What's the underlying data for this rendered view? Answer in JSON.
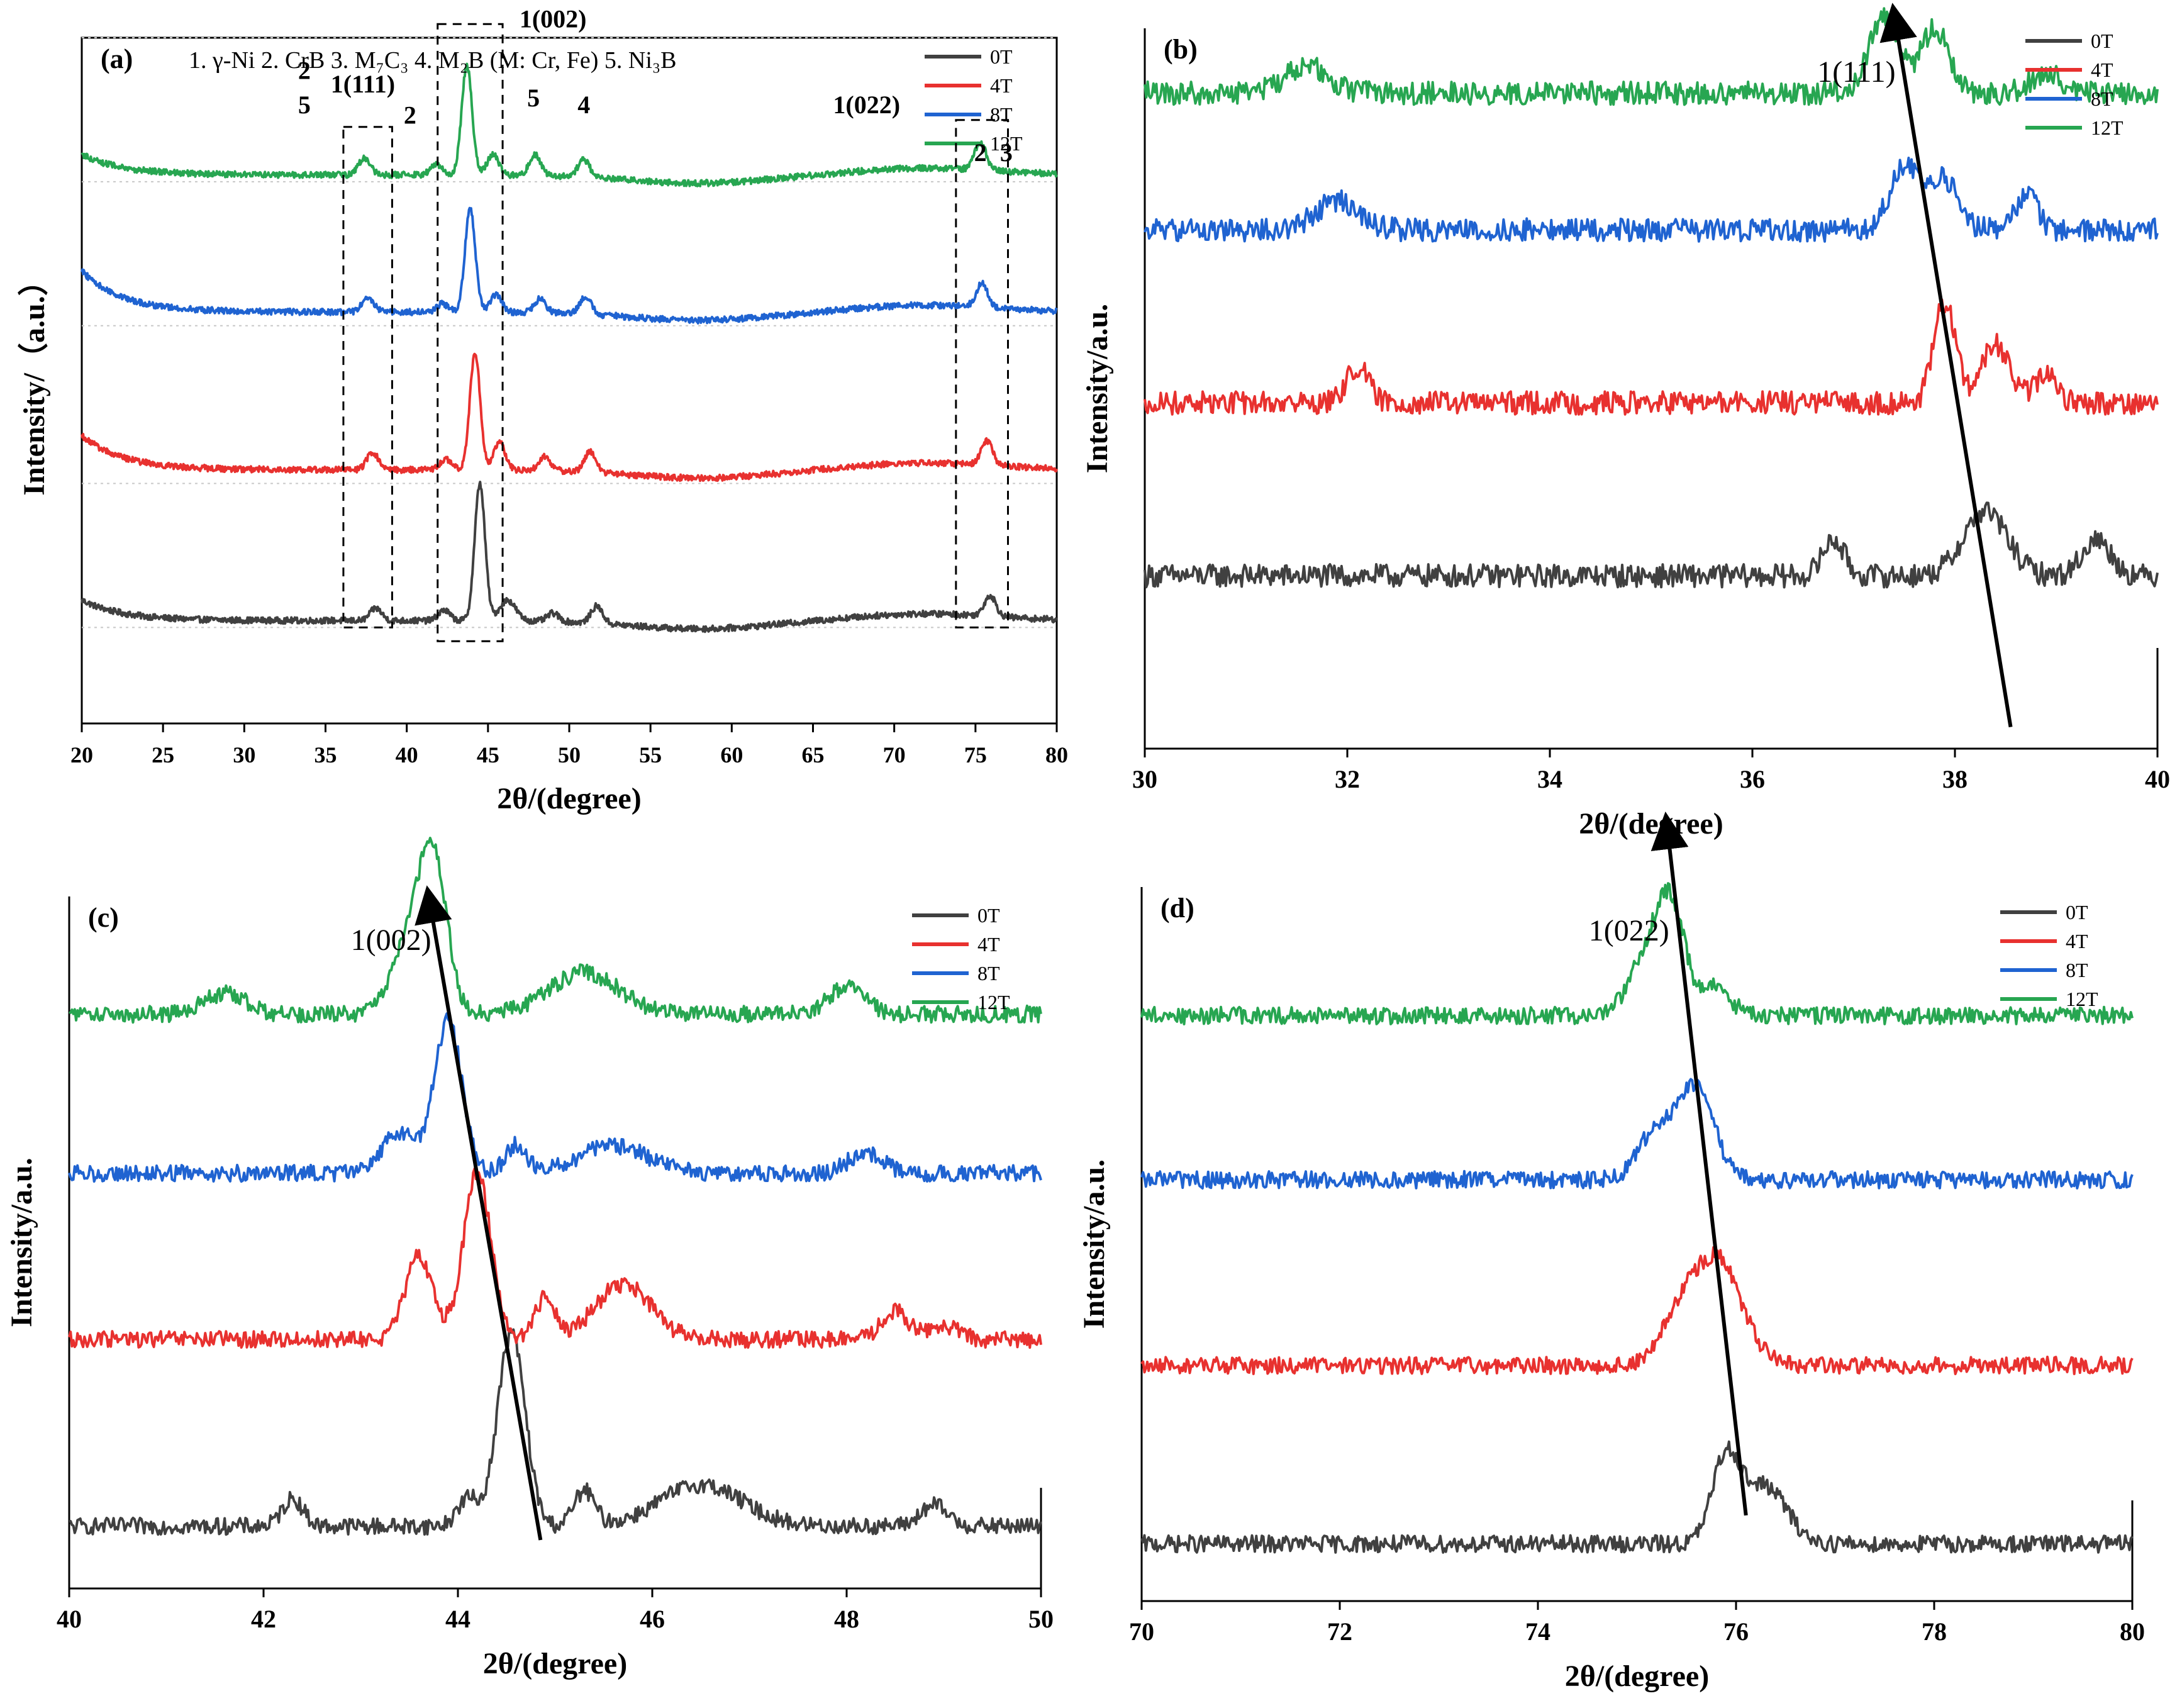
{
  "figure": {
    "colors": {
      "0T": "#404040",
      "4T": "#e8312f",
      "8T": "#1f63d1",
      "12T": "#27a651"
    },
    "legend": [
      "0T",
      "4T",
      "8T",
      "12T"
    ]
  },
  "chart_data": [
    {
      "id": "a",
      "type": "line",
      "panel_label": "(a)",
      "phase_legend": "1. γ-Ni  2. CrB  3. M₇C₃  4. M₂B (M: Cr, Fe)  5. Ni₃B",
      "xlabel": "2θ/(degree)",
      "ylabel": "Intensity/（a.u.）",
      "xlim": [
        20,
        80
      ],
      "xticks": [
        20,
        25,
        30,
        35,
        40,
        45,
        50,
        55,
        60,
        65,
        70,
        75,
        80
      ],
      "ylim": [
        0,
        100
      ],
      "series": [
        {
          "name": "0T",
          "baseline": 15,
          "start": 18,
          "peaks": [
            [
              38.1,
              1.8,
              0.5
            ],
            [
              42.3,
              1.5,
              0.5
            ],
            [
              44.5,
              20,
              0.45
            ],
            [
              46.2,
              3,
              0.7
            ],
            [
              49,
              1.2,
              0.5
            ],
            [
              51.7,
              2.5,
              0.5
            ],
            [
              75.9,
              3,
              0.5
            ]
          ]
        },
        {
          "name": "4T",
          "baseline": 37,
          "start": 42,
          "peaks": [
            [
              37.9,
              2.5,
              0.5
            ],
            [
              42.4,
              1.5,
              0.5
            ],
            [
              44.2,
              17,
              0.45
            ],
            [
              45.7,
              4,
              0.5
            ],
            [
              48.5,
              2,
              0.5
            ],
            [
              51.3,
              3,
              0.5
            ],
            [
              75.7,
              3.5,
              0.5
            ]
          ]
        },
        {
          "name": "8T",
          "baseline": 60,
          "start": 66,
          "peaks": [
            [
              37.6,
              2.2,
              0.5
            ],
            [
              42.2,
              1.2,
              0.5
            ],
            [
              43.9,
              15,
              0.45
            ],
            [
              45.5,
              2.5,
              0.5
            ],
            [
              48.2,
              2,
              0.5
            ],
            [
              51,
              2.5,
              0.5
            ],
            [
              75.4,
              3.5,
              0.5
            ]
          ]
        },
        {
          "name": "12T",
          "baseline": 80,
          "start": 83,
          "peaks": [
            [
              37.4,
              2.5,
              0.5
            ],
            [
              41.8,
              1.5,
              0.5
            ],
            [
              43.7,
              16,
              0.45
            ],
            [
              45.3,
              3,
              0.5
            ],
            [
              47.9,
              3,
              0.5
            ],
            [
              50.9,
              2.5,
              0.5
            ],
            [
              75.3,
              4,
              0.5
            ]
          ]
        }
      ],
      "annotations": [
        {
          "text": "2",
          "x": 33.7,
          "y": 94
        },
        {
          "text": "5",
          "x": 33.7,
          "y": 89
        },
        {
          "text": "1(111)",
          "x": 37.3,
          "y": 92
        },
        {
          "text": "2",
          "x": 40.2,
          "y": 87.5
        },
        {
          "text": "1(002)",
          "x": 49,
          "y": 101.5
        },
        {
          "text": "5",
          "x": 47.8,
          "y": 90
        },
        {
          "text": "4",
          "x": 50.9,
          "y": 89
        },
        {
          "text": "1(022)",
          "x": 68.3,
          "y": 89
        },
        {
          "text": "2",
          "x": 75.3,
          "y": 82
        },
        {
          "text": "3",
          "x": 76.9,
          "y": 82
        }
      ],
      "boxes": [
        {
          "x0": 36.1,
          "x1": 39.1,
          "y0": 14,
          "y1": 87
        },
        {
          "x0": 41.9,
          "x1": 45.9,
          "y0": 12,
          "y1": 102
        },
        {
          "x0": 73.8,
          "x1": 77.0,
          "y0": 14,
          "y1": 88
        }
      ]
    },
    {
      "id": "b",
      "type": "line",
      "panel_label": "(b)",
      "peak_label": "1(111)",
      "xlabel": "2θ/(degree)",
      "ylabel": "Intensity/a.u.",
      "xlim": [
        30,
        40
      ],
      "xticks": [
        30,
        32,
        34,
        36,
        38,
        40
      ],
      "ylim": [
        0,
        100
      ],
      "series": [
        {
          "name": "0T",
          "baseline": 24,
          "peaks": [
            [
              36.8,
              5,
              0.15
            ],
            [
              38.3,
              9,
              0.3
            ],
            [
              39.4,
              5,
              0.2
            ]
          ]
        },
        {
          "name": "4T",
          "baseline": 48,
          "peaks": [
            [
              32.1,
              5,
              0.15
            ],
            [
              37.9,
              14,
              0.15
            ],
            [
              38.4,
              8,
              0.2
            ],
            [
              38.9,
              4,
              0.15
            ]
          ]
        },
        {
          "name": "8T",
          "baseline": 72,
          "peaks": [
            [
              31.9,
              4,
              0.3
            ],
            [
              37.5,
              9,
              0.2
            ],
            [
              37.9,
              7,
              0.2
            ],
            [
              38.7,
              5,
              0.15
            ]
          ]
        },
        {
          "name": "12T",
          "baseline": 91,
          "peaks": [
            [
              31.6,
              4,
              0.3
            ],
            [
              37.3,
              11,
              0.2
            ],
            [
              37.8,
              9,
              0.2
            ],
            [
              38.9,
              3,
              0.2
            ]
          ]
        }
      ],
      "arrow": {
        "from": [
          38.55,
          3
        ],
        "to": [
          37.4,
          102
        ]
      }
    },
    {
      "id": "c",
      "type": "line",
      "panel_label": "(c)",
      "peak_label": "1(002)",
      "xlabel": "2θ/(degree)",
      "ylabel": "Intensity/a.u.",
      "xlim": [
        40,
        50
      ],
      "xticks": [
        40,
        42,
        44,
        46,
        48,
        50
      ],
      "ylim": [
        0,
        100
      ],
      "series": [
        {
          "name": "0T",
          "baseline": 9,
          "peaks": [
            [
              42.3,
              4,
              0.15
            ],
            [
              44.1,
              4,
              0.15
            ],
            [
              44.55,
              28,
              0.2
            ],
            [
              45.3,
              5,
              0.15
            ],
            [
              46.5,
              6,
              0.6
            ],
            [
              48.9,
              3,
              0.2
            ]
          ]
        },
        {
          "name": "4T",
          "baseline": 36,
          "peaks": [
            [
              43.6,
              12,
              0.2
            ],
            [
              44.2,
              24,
              0.2
            ],
            [
              44.9,
              6,
              0.15
            ],
            [
              45.7,
              8,
              0.4
            ],
            [
              48.5,
              4,
              0.2
            ],
            [
              49,
              2,
              0.2
            ]
          ]
        },
        {
          "name": "8T",
          "baseline": 60,
          "peaks": [
            [
              43.4,
              6,
              0.25
            ],
            [
              43.9,
              22,
              0.2
            ],
            [
              44.6,
              4,
              0.15
            ],
            [
              45.6,
              4,
              0.5
            ],
            [
              48.2,
              3,
              0.25
            ]
          ]
        },
        {
          "name": "12T",
          "baseline": 83,
          "peaks": [
            [
              41.6,
              3,
              0.3
            ],
            [
              43.5,
              10,
              0.25
            ],
            [
              43.75,
              21,
              0.2
            ],
            [
              45.3,
              6,
              0.5
            ],
            [
              48,
              4,
              0.25
            ]
          ]
        }
      ],
      "arrow": {
        "from": [
          44.85,
          7
        ],
        "to": [
          43.7,
          100
        ]
      }
    },
    {
      "id": "d",
      "type": "line",
      "panel_label": "(d)",
      "peak_label": "1(022)",
      "xlabel": "2θ/(degree)",
      "ylabel": "Intensity/a.u.",
      "xlim": [
        70,
        80
      ],
      "xticks": [
        70,
        72,
        74,
        76,
        78,
        80
      ],
      "ylim": [
        0,
        100
      ],
      "series": [
        {
          "name": "0T",
          "baseline": 8,
          "peaks": [
            [
              75.9,
              12,
              0.2
            ],
            [
              76.3,
              8,
              0.3
            ]
          ]
        },
        {
          "name": "4T",
          "baseline": 33,
          "peaks": [
            [
              75.4,
              5,
              0.25
            ],
            [
              75.8,
              15,
              0.35
            ]
          ]
        },
        {
          "name": "8T",
          "baseline": 59,
          "peaks": [
            [
              75.2,
              7,
              0.25
            ],
            [
              75.6,
              13,
              0.25
            ]
          ]
        },
        {
          "name": "12T",
          "baseline": 82,
          "peaks": [
            [
              75.1,
              8,
              0.25
            ],
            [
              75.35,
              14,
              0.2
            ],
            [
              75.8,
              4,
              0.2
            ]
          ]
        }
      ],
      "arrow": {
        "from": [
          76.1,
          12
        ],
        "to": [
          75.3,
          109
        ]
      }
    }
  ]
}
